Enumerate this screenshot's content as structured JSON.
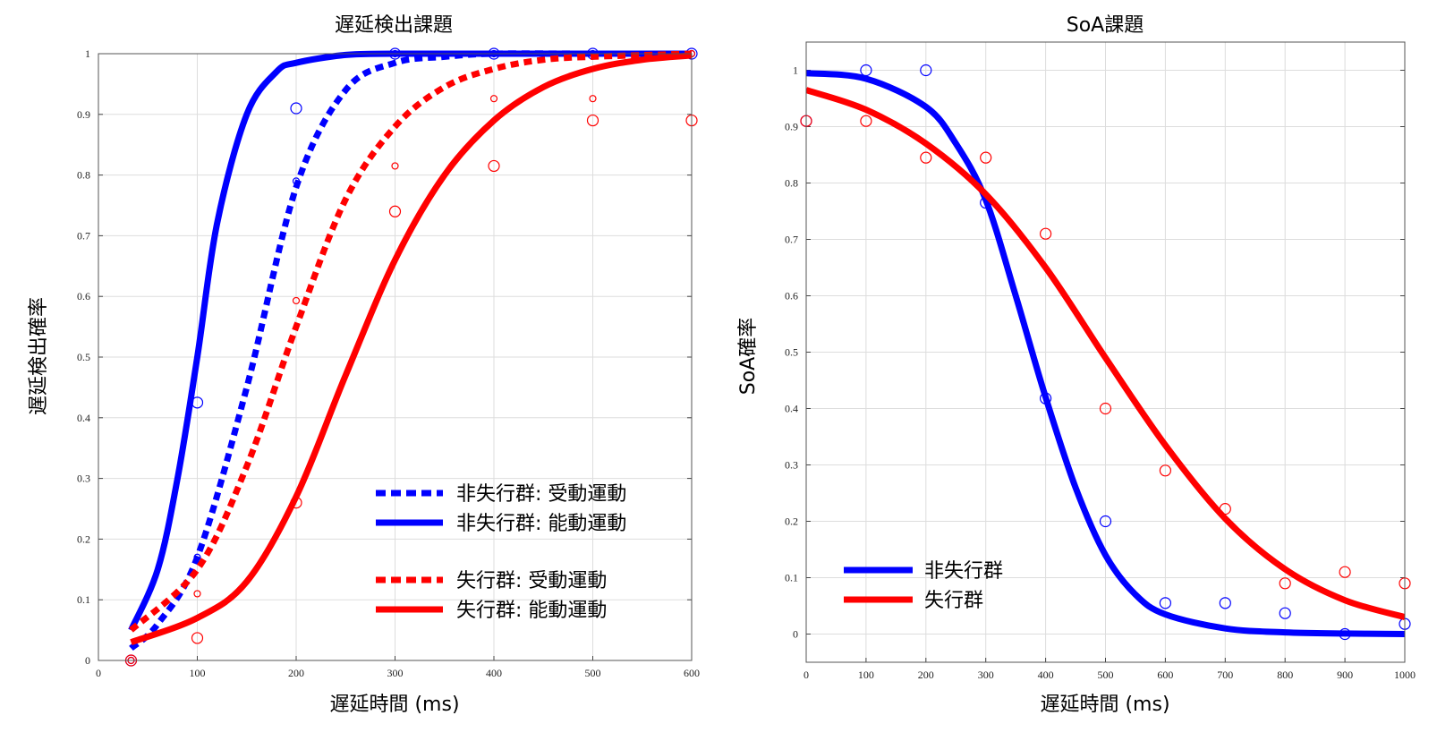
{
  "chart_data": [
    {
      "type": "line",
      "title": "遅延検出課題",
      "xlabel": "遅延時間 (ms)",
      "ylabel": "遅延検出確率",
      "xlim": [
        0,
        600
      ],
      "ylim": [
        0,
        1
      ],
      "xticks": [
        "0",
        "100",
        "200",
        "300",
        "400",
        "500",
        "600"
      ],
      "yticks": [
        "0",
        "0.1",
        "0.2",
        "0.3",
        "0.4",
        "0.5",
        "0.6",
        "0.7",
        "0.8",
        "0.9",
        "1"
      ],
      "grid": true,
      "legend_position": "bottom-right",
      "series": [
        {
          "name": "非失行群: 受動運動",
          "color": "#0000ff",
          "style": "dotted",
          "curve": {
            "x": [
              33,
              60,
              100,
              150,
              200,
              250,
              300,
              350,
              400,
              500,
              600
            ],
            "y": [
              0.02,
              0.06,
              0.17,
              0.45,
              0.78,
              0.94,
              0.985,
              0.995,
              1.0,
              1.0,
              1.0
            ]
          },
          "points": {
            "x": [
              33,
              100,
              200,
              300,
              400,
              500,
              600
            ],
            "y": [
              0.0,
              0.17,
              0.79,
              1.0,
              1.0,
              1.0,
              1.0
            ],
            "size": "small"
          }
        },
        {
          "name": "非失行群: 能動運動",
          "color": "#0000ff",
          "style": "solid",
          "curve": {
            "x": [
              33,
              60,
              80,
              100,
              120,
              150,
              180,
              200,
              250,
              300,
              400,
              600
            ],
            "y": [
              0.05,
              0.15,
              0.3,
              0.5,
              0.72,
              0.9,
              0.97,
              0.985,
              0.998,
              1.0,
              1.0,
              1.0
            ]
          },
          "points": {
            "x": [
              33,
              100,
              200,
              300,
              400,
              500,
              600
            ],
            "y": [
              0.0,
              0.425,
              0.91,
              1.0,
              1.0,
              1.0,
              1.0
            ],
            "size": "large"
          }
        },
        {
          "name": "失行群: 受動運動",
          "color": "#ff0000",
          "style": "dotted",
          "curve": {
            "x": [
              33,
              100,
              150,
              200,
              250,
              300,
              350,
              400,
              450,
              500,
              600
            ],
            "y": [
              0.05,
              0.15,
              0.32,
              0.55,
              0.76,
              0.88,
              0.945,
              0.975,
              0.99,
              0.995,
              1.0
            ]
          },
          "points": {
            "x": [
              33,
              100,
              200,
              300,
              400,
              500,
              600
            ],
            "y": [
              0.0,
              0.11,
              0.593,
              0.815,
              0.926,
              0.926,
              1.0
            ],
            "size": "small"
          }
        },
        {
          "name": "失行群: 能動運動",
          "color": "#ff0000",
          "style": "solid",
          "curve": {
            "x": [
              33,
              100,
              150,
              200,
              250,
              300,
              350,
              400,
              450,
              500,
              550,
              600
            ],
            "y": [
              0.03,
              0.07,
              0.13,
              0.27,
              0.47,
              0.66,
              0.8,
              0.89,
              0.945,
              0.975,
              0.99,
              0.997
            ]
          },
          "points": {
            "x": [
              33,
              100,
              200,
              300,
              400,
              500,
              600
            ],
            "y": [
              0.0,
              0.037,
              0.26,
              0.74,
              0.815,
              0.89,
              0.89
            ],
            "size": "large"
          }
        }
      ]
    },
    {
      "type": "line",
      "title": "SoA課題",
      "xlabel": "遅延時間 (ms)",
      "ylabel": "SoA確率",
      "xlim": [
        0,
        1000
      ],
      "ylim": [
        -0.05,
        1.05
      ],
      "xticks": [
        "0",
        "100",
        "200",
        "300",
        "400",
        "500",
        "600",
        "700",
        "800",
        "900",
        "1000"
      ],
      "yticks": [
        "0",
        "0.1",
        "0.2",
        "0.3",
        "0.4",
        "0.5",
        "0.6",
        "0.7",
        "0.8",
        "0.9",
        "1"
      ],
      "grid": true,
      "legend_position": "bottom-left",
      "series": [
        {
          "name": "非失行群",
          "color": "#0000ff",
          "style": "solid",
          "curve": {
            "x": [
              0,
              100,
              200,
              250,
              300,
              350,
              400,
              450,
              500,
              550,
              600,
              700,
              800,
              900,
              1000
            ],
            "y": [
              0.995,
              0.985,
              0.935,
              0.87,
              0.77,
              0.6,
              0.42,
              0.26,
              0.14,
              0.07,
              0.035,
              0.01,
              0.003,
              0.001,
              0.0
            ]
          },
          "points": {
            "x": [
              0,
              100,
              200,
              300,
              400,
              500,
              600,
              700,
              800,
              900,
              1000
            ],
            "y": [
              0.91,
              1.0,
              1.0,
              0.765,
              0.418,
              0.2,
              0.055,
              0.055,
              0.037,
              0.0,
              0.018
            ],
            "size": "large"
          }
        },
        {
          "name": "失行群",
          "color": "#ff0000",
          "style": "solid",
          "curve": {
            "x": [
              0,
              100,
              200,
              300,
              400,
              500,
              600,
              700,
              800,
              900,
              1000
            ],
            "y": [
              0.965,
              0.93,
              0.87,
              0.78,
              0.65,
              0.49,
              0.335,
              0.205,
              0.115,
              0.06,
              0.03
            ]
          },
          "points": {
            "x": [
              0,
              100,
              200,
              300,
              400,
              500,
              600,
              700,
              800,
              900,
              1000
            ],
            "y": [
              0.91,
              0.91,
              0.845,
              0.845,
              0.71,
              0.4,
              0.29,
              0.222,
              0.09,
              0.11,
              0.09
            ],
            "size": "large"
          }
        }
      ]
    }
  ]
}
